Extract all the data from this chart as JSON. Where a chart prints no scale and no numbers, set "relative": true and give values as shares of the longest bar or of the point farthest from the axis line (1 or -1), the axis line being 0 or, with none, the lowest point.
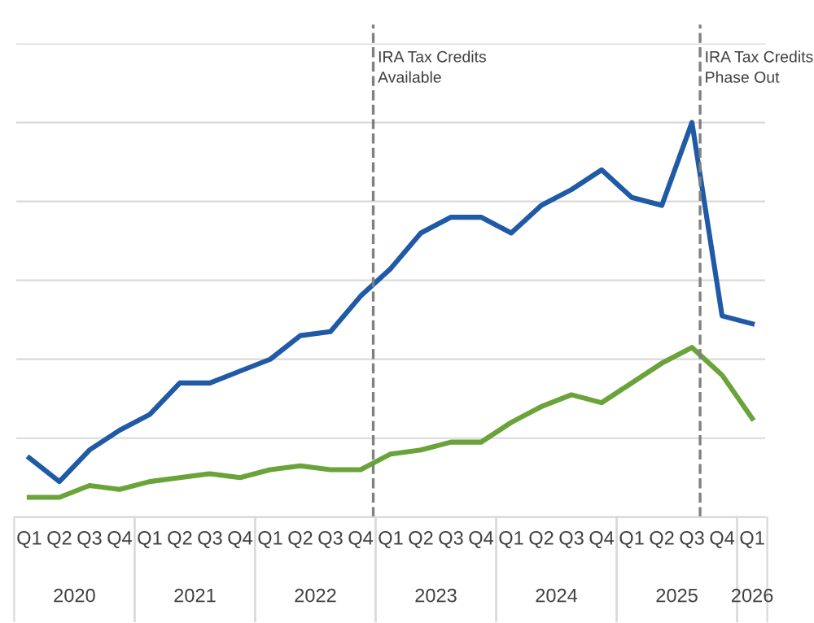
{
  "chart_data": {
    "type": "line",
    "relative": true,
    "grid": "y",
    "line_style": "solid",
    "marker": "none",
    "categories": [
      "Q1",
      "Q2",
      "Q3",
      "Q4",
      "Q1",
      "Q2",
      "Q3",
      "Q4",
      "Q1",
      "Q2",
      "Q3",
      "Q4",
      "Q1",
      "Q2",
      "Q3",
      "Q4",
      "Q1",
      "Q2",
      "Q3",
      "Q4",
      "Q1",
      "Q2",
      "Q3",
      "Q4",
      "Q1"
    ],
    "series": [
      {
        "color": "#1f5aa6",
        "values": [
          0.15,
          0.09,
          0.17,
          0.22,
          0.26,
          0.34,
          0.34,
          0.37,
          0.4,
          0.46,
          0.47,
          0.56,
          0.63,
          0.72,
          0.76,
          0.76,
          0.72,
          0.79,
          0.83,
          0.88,
          0.81,
          0.79,
          1.0,
          0.51,
          0.49
        ]
      },
      {
        "color": "#6aa33a",
        "values": [
          0.05,
          0.05,
          0.08,
          0.07,
          0.09,
          0.1,
          0.11,
          0.1,
          0.12,
          0.13,
          0.12,
          0.12,
          0.16,
          0.17,
          0.19,
          0.19,
          0.24,
          0.28,
          0.31,
          0.29,
          0.34,
          0.39,
          0.43,
          0.36,
          0.25
        ]
      }
    ],
    "annotations": [
      "2020",
      "2021",
      "2022",
      "2023",
      "2024",
      "2025",
      "2026",
      "IRA Tax Credits\nAvailable",
      "IRA Tax Credits\nPhase Out"
    ]
  }
}
